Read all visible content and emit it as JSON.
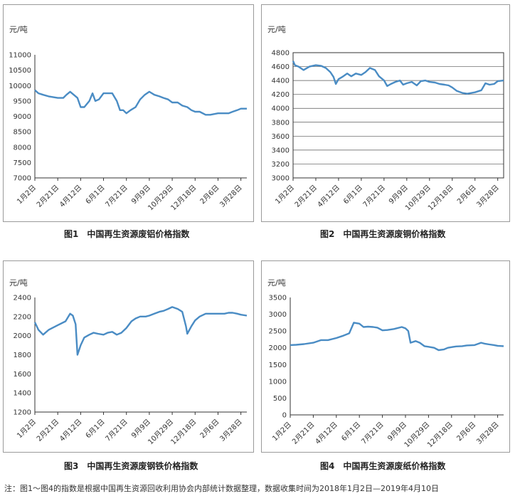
{
  "captions": {
    "fig1": "图1　中国再生资源废铝价格指数",
    "fig2": "图2　中国再生资源废铜价格指数",
    "fig3": "图3　中国再生资源废钢铁价格指数",
    "fig4": "图4　中国再生资源废纸价格指数"
  },
  "note": "注：图1～图4的指数是根据中国再生资源回收利用协会内部统计数据整理，数据收集时间为2018年1月2日—2019年4月10日",
  "colors": {
    "line": "#4a8cc4",
    "axis": "#333333"
  },
  "x_ticks": [
    "1月2日",
    "2月21日",
    "4月12日",
    "6月1日",
    "7月21日",
    "9月9日",
    "10月29日",
    "12月18日",
    "2月6日",
    "3月28日"
  ],
  "chart_data": [
    {
      "type": "line",
      "title": "图1　中国再生资源废铝价格指数",
      "unit": "元/吨",
      "y_ticks": [
        7000,
        7500,
        8000,
        8500,
        9000,
        9500,
        10000,
        10500,
        11000
      ],
      "ylim": [
        7000,
        11000
      ],
      "grid": false,
      "x_ticks": [
        "1月2日",
        "2月21日",
        "4月12日",
        "6月1日",
        "7月21日",
        "9月9日",
        "10月29日",
        "12月18日",
        "2月6日",
        "3月28日"
      ],
      "x": [
        "2018-01-02",
        "2018-01-10",
        "2018-01-20",
        "2018-02-01",
        "2018-02-21",
        "2018-03-05",
        "2018-03-12",
        "2018-03-20",
        "2018-03-28",
        "2018-04-05",
        "2018-04-12",
        "2018-04-20",
        "2018-05-01",
        "2018-05-08",
        "2018-05-14",
        "2018-05-22",
        "2018-06-01",
        "2018-06-10",
        "2018-06-20",
        "2018-06-30",
        "2018-07-07",
        "2018-07-14",
        "2018-07-21",
        "2018-07-30",
        "2018-08-10",
        "2018-08-20",
        "2018-08-30",
        "2018-09-09",
        "2018-09-20",
        "2018-10-01",
        "2018-10-10",
        "2018-10-20",
        "2018-10-29",
        "2018-11-10",
        "2018-11-20",
        "2018-12-01",
        "2018-12-10",
        "2018-12-18",
        "2018-12-28",
        "2019-01-10",
        "2019-01-20",
        "2019-02-06",
        "2019-02-20",
        "2019-03-01",
        "2019-03-10",
        "2019-03-20",
        "2019-03-28",
        "2019-04-10"
      ],
      "series": [
        {
          "values": [
            9850,
            9750,
            9700,
            9650,
            9600,
            9600,
            9700,
            9800,
            9700,
            9600,
            9300,
            9300,
            9500,
            9750,
            9500,
            9550,
            9750,
            9750,
            9750,
            9500,
            9200,
            9200,
            9100,
            9200,
            9300,
            9550,
            9700,
            9800,
            9700,
            9650,
            9600,
            9550,
            9450,
            9450,
            9350,
            9300,
            9200,
            9150,
            9150,
            9050,
            9050,
            9100,
            9100,
            9100,
            9150,
            9200,
            9250,
            9250
          ]
        }
      ]
    },
    {
      "type": "line",
      "title": "图2　中国再生资源废铜价格指数",
      "unit": "元/吨",
      "y_ticks": [
        3000,
        3200,
        3400,
        3600,
        3800,
        4000,
        4200,
        4400,
        4600,
        4800
      ],
      "ylim": [
        3000,
        4800
      ],
      "grid": true,
      "x_ticks": [
        "1月2日",
        "2月21日",
        "4月12日",
        "6月1日",
        "7月21日",
        "9月9日",
        "10月29日",
        "12月18日",
        "2月6日",
        "3月28日"
      ],
      "x": [
        "2018-01-02",
        "2018-01-06",
        "2018-01-14",
        "2018-01-25",
        "2018-02-07",
        "2018-02-21",
        "2018-03-05",
        "2018-03-15",
        "2018-03-25",
        "2018-04-01",
        "2018-04-06",
        "2018-04-12",
        "2018-04-20",
        "2018-05-01",
        "2018-05-10",
        "2018-05-20",
        "2018-06-01",
        "2018-06-10",
        "2018-06-20",
        "2018-07-01",
        "2018-07-10",
        "2018-07-21",
        "2018-07-28",
        "2018-08-05",
        "2018-08-15",
        "2018-08-25",
        "2018-09-01",
        "2018-09-09",
        "2018-09-20",
        "2018-10-01",
        "2018-10-10",
        "2018-10-20",
        "2018-10-29",
        "2018-11-10",
        "2018-11-20",
        "2018-12-01",
        "2018-12-10",
        "2018-12-18",
        "2018-12-28",
        "2019-01-10",
        "2019-01-20",
        "2019-02-06",
        "2019-02-20",
        "2019-03-01",
        "2019-03-10",
        "2019-03-20",
        "2019-03-28",
        "2019-04-10"
      ],
      "series": [
        {
          "values": [
            4680,
            4620,
            4600,
            4550,
            4600,
            4620,
            4610,
            4580,
            4520,
            4450,
            4350,
            4420,
            4450,
            4500,
            4460,
            4500,
            4480,
            4520,
            4580,
            4550,
            4460,
            4400,
            4320,
            4350,
            4380,
            4400,
            4340,
            4360,
            4380,
            4330,
            4390,
            4400,
            4380,
            4370,
            4350,
            4340,
            4330,
            4300,
            4250,
            4220,
            4210,
            4230,
            4260,
            4360,
            4340,
            4350,
            4390,
            4400
          ]
        }
      ]
    },
    {
      "type": "line",
      "title": "图3　中国再生资源废钢铁价格指数",
      "unit": "元/吨",
      "y_ticks": [
        1200,
        1400,
        1600,
        1800,
        2000,
        2200,
        2400
      ],
      "ylim": [
        1200,
        2400
      ],
      "grid": false,
      "x_ticks": [
        "1月2日",
        "2月21日",
        "4月12日",
        "6月1日",
        "7月21日",
        "9月9日",
        "10月29日",
        "12月18日",
        "2月6日",
        "3月28日"
      ],
      "x": [
        "2018-01-02",
        "2018-01-10",
        "2018-01-20",
        "2018-02-01",
        "2018-02-21",
        "2018-03-10",
        "2018-03-20",
        "2018-03-26",
        "2018-04-01",
        "2018-04-05",
        "2018-04-12",
        "2018-04-20",
        "2018-05-01",
        "2018-05-10",
        "2018-05-20",
        "2018-06-01",
        "2018-06-10",
        "2018-06-20",
        "2018-06-30",
        "2018-07-10",
        "2018-07-21",
        "2018-08-01",
        "2018-08-10",
        "2018-08-20",
        "2018-09-01",
        "2018-09-09",
        "2018-09-20",
        "2018-10-01",
        "2018-10-10",
        "2018-10-20",
        "2018-10-29",
        "2018-11-10",
        "2018-11-20",
        "2018-11-28",
        "2018-12-01",
        "2018-12-10",
        "2018-12-18",
        "2018-12-28",
        "2019-01-10",
        "2019-01-20",
        "2019-02-06",
        "2019-02-20",
        "2019-03-01",
        "2019-03-10",
        "2019-03-20",
        "2019-03-28",
        "2019-04-10"
      ],
      "series": [
        {
          "values": [
            2140,
            2060,
            2010,
            2060,
            2110,
            2150,
            2230,
            2210,
            2120,
            1800,
            1900,
            1980,
            2010,
            2030,
            2020,
            2010,
            2030,
            2040,
            2010,
            2030,
            2080,
            2150,
            2180,
            2200,
            2200,
            2210,
            2230,
            2250,
            2260,
            2280,
            2300,
            2280,
            2250,
            2100,
            2020,
            2100,
            2160,
            2200,
            2230,
            2230,
            2230,
            2230,
            2240,
            2240,
            2230,
            2220,
            2210
          ]
        }
      ]
    },
    {
      "type": "line",
      "title": "图4　中国再生资源废纸价格指数",
      "unit": "元/吨",
      "y_ticks": [
        0,
        500,
        1000,
        1500,
        2000,
        2500,
        3000,
        3500
      ],
      "ylim": [
        0,
        3500
      ],
      "grid": false,
      "x_ticks": [
        "1月2日",
        "2月21日",
        "4月12日",
        "6月1日",
        "7月21日",
        "9月9日",
        "10月29日",
        "12月18日",
        "2月6日",
        "3月28日"
      ],
      "x": [
        "2018-01-02",
        "2018-01-15",
        "2018-02-01",
        "2018-02-21",
        "2018-03-10",
        "2018-03-25",
        "2018-04-12",
        "2018-04-25",
        "2018-05-10",
        "2018-05-20",
        "2018-06-01",
        "2018-06-10",
        "2018-06-20",
        "2018-07-01",
        "2018-07-10",
        "2018-07-21",
        "2018-08-01",
        "2018-08-15",
        "2018-09-01",
        "2018-09-09",
        "2018-09-15",
        "2018-09-20",
        "2018-10-01",
        "2018-10-10",
        "2018-10-20",
        "2018-10-29",
        "2018-11-10",
        "2018-11-20",
        "2018-12-01",
        "2018-12-10",
        "2018-12-18",
        "2018-12-28",
        "2019-01-10",
        "2019-01-20",
        "2019-02-06",
        "2019-02-20",
        "2019-03-01",
        "2019-03-10",
        "2019-03-20",
        "2019-03-28",
        "2019-04-10"
      ],
      "series": [
        {
          "values": [
            2080,
            2090,
            2110,
            2150,
            2230,
            2230,
            2290,
            2350,
            2430,
            2750,
            2720,
            2620,
            2630,
            2620,
            2600,
            2520,
            2530,
            2560,
            2620,
            2580,
            2500,
            2150,
            2200,
            2150,
            2050,
            2030,
            2000,
            1930,
            1950,
            2000,
            2020,
            2040,
            2050,
            2070,
            2080,
            2150,
            2120,
            2100,
            2080,
            2060,
            2050
          ]
        }
      ]
    }
  ]
}
